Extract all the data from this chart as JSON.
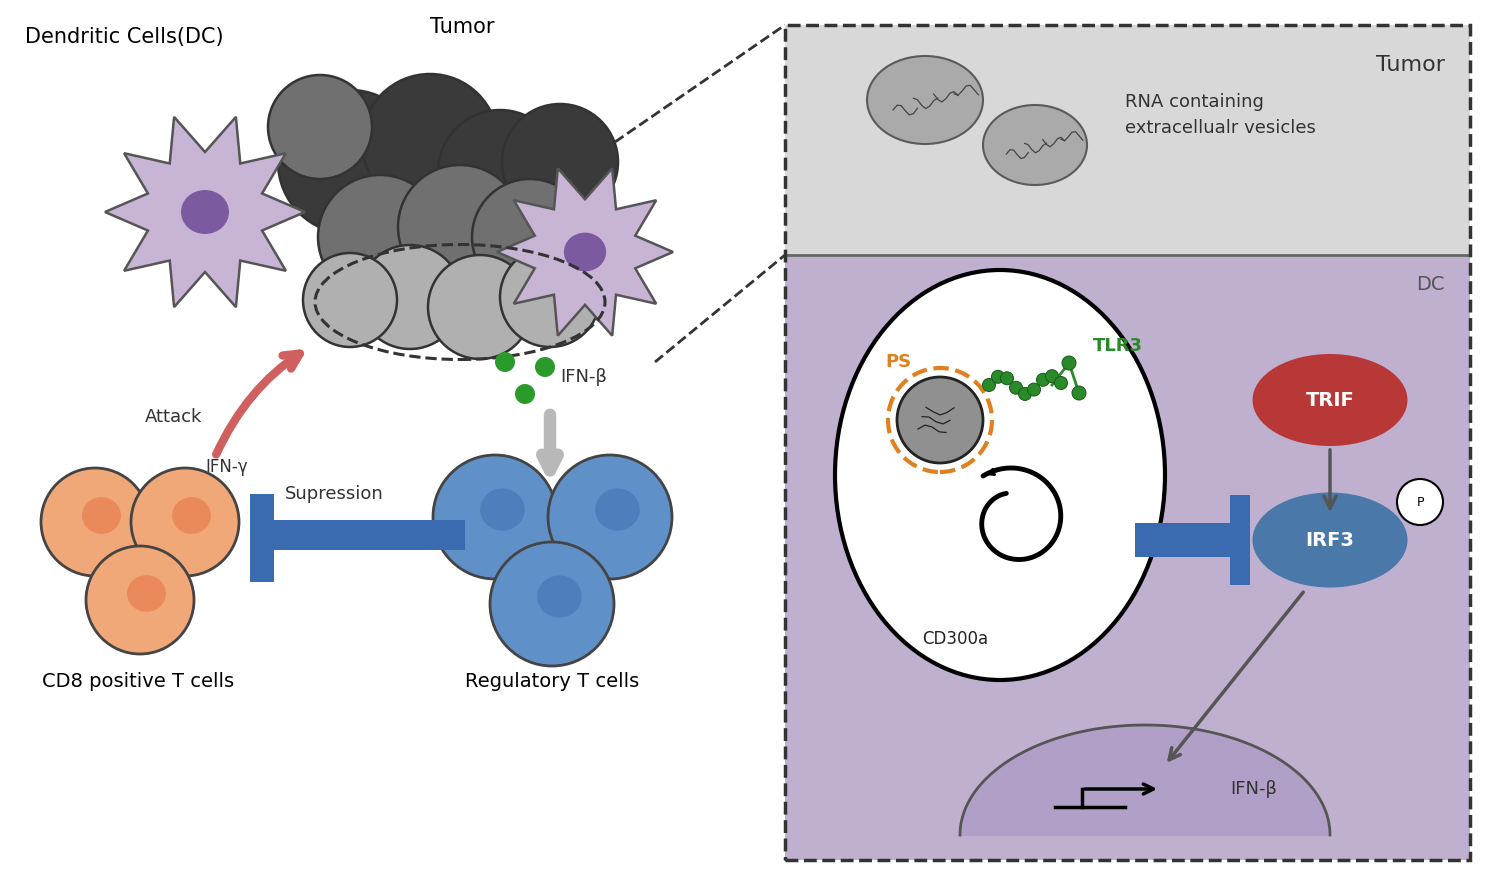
{
  "bg_color": "#ffffff",
  "left_panel": {
    "dc_label": "Dendritic Cells(DC)",
    "tumor_label": "Tumor",
    "cd8_label": "CD8 positive T cells",
    "reg_label": "Regulatory T cells",
    "attack_label": "Attack",
    "ifn_gamma_label": "IFN-γ",
    "ifn_beta_label": "IFN-β",
    "suppression_label": "Supression"
  },
  "right_panel": {
    "tumor_label": "Tumor",
    "rna_label": "RNA containing\nextracellualr vesicles",
    "dc_label": "DC",
    "ps_label": "PS",
    "tlr3_label": "TLR3",
    "cd300a_label": "CD300a",
    "trif_label": "TRIF",
    "irf3_label": "IRF3",
    "ifn_beta_label": "IFN-β",
    "p_label": "P"
  },
  "colors": {
    "dc_cell_body": "#c8b4d4",
    "dc_cell_nucleus": "#7b5aa0",
    "tumor_cell_dark": "#3a3a3a",
    "tumor_cell_mid": "#707070",
    "tumor_cell_light": "#b0b0b0",
    "cd8_cell": "#f0a878",
    "cd8_inner": "#e88050",
    "reg_cell": "#6090c8",
    "reg_inner": "#4a78b8",
    "green_dots": "#2a9a2a",
    "attack_arrow": "#d06060",
    "suppression_bar": "#3a6ab0",
    "right_bg_top": "#d8d8d8",
    "right_bg_dc": "#c0b0d0",
    "trif_color": "#b83838",
    "irf3_color": "#4a78a8",
    "nucleus_darker": "#b0a0c8",
    "orange_ps": "#e08020",
    "tlr3_color": "#2a8a2a",
    "gray_vesicle": "#a8a8a8"
  }
}
